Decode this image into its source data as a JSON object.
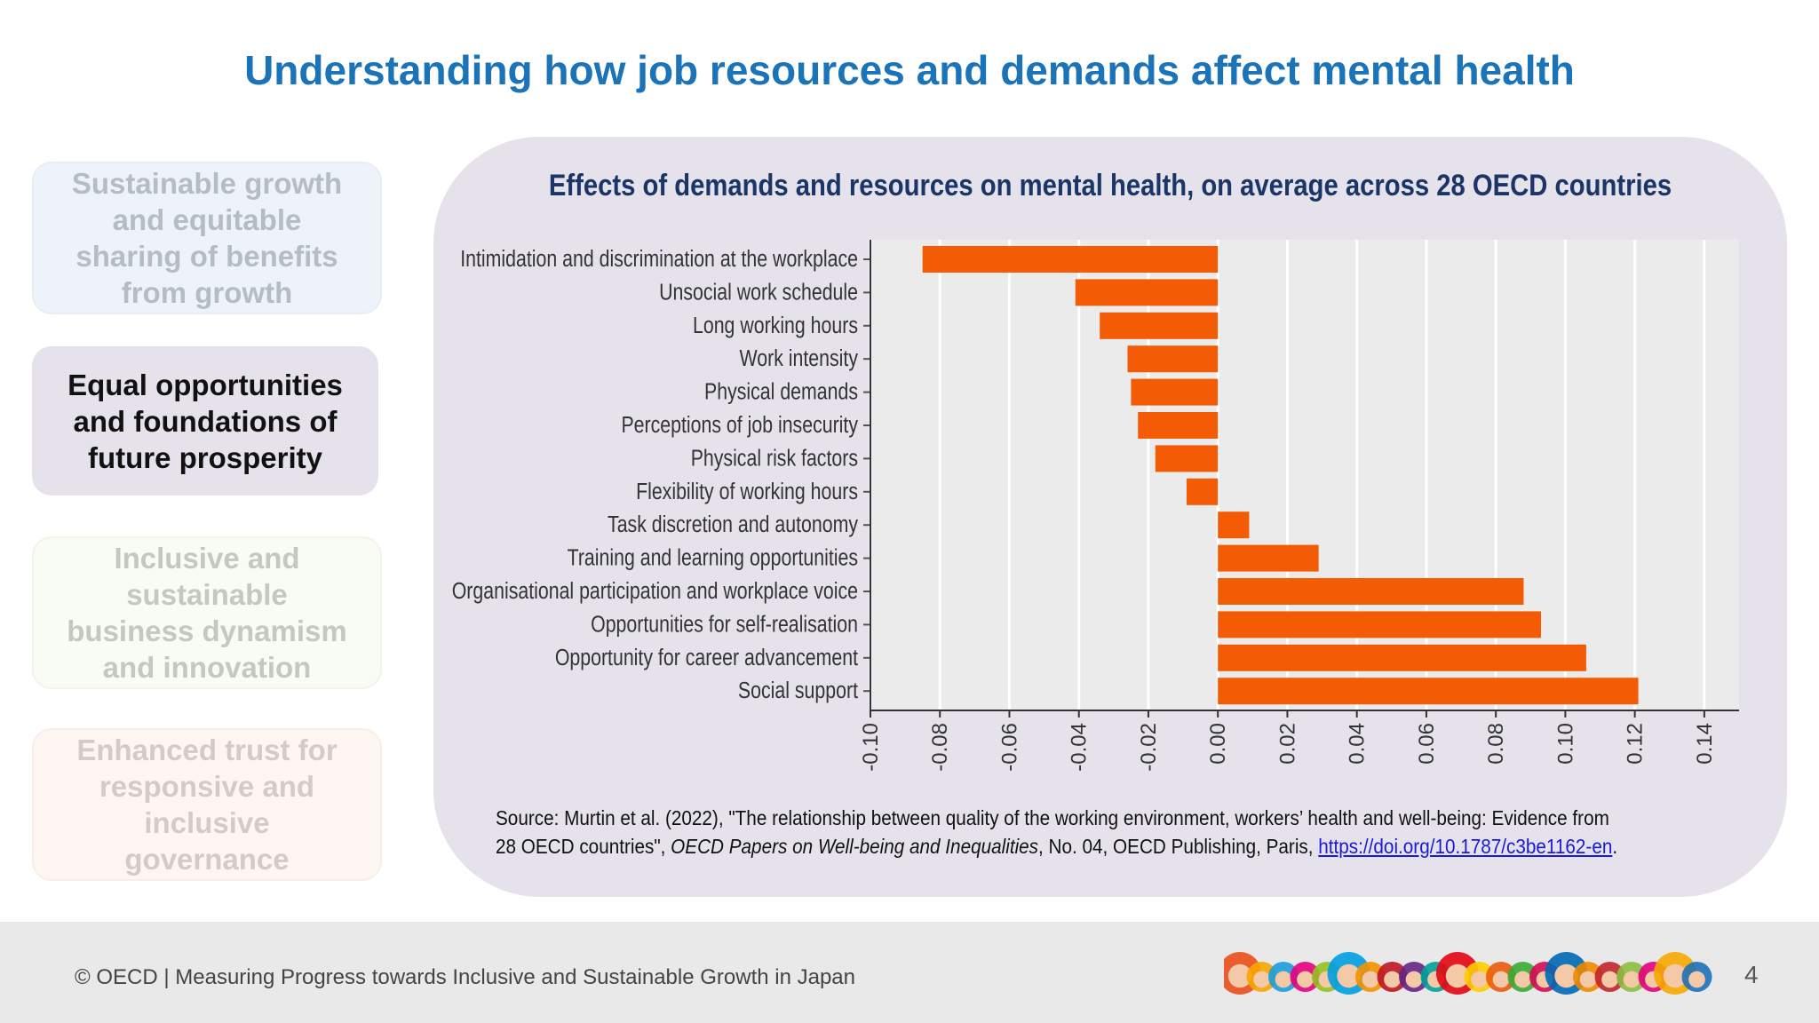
{
  "page": {
    "title": "Understanding how job resources and demands affect mental health",
    "page_number": "4"
  },
  "sidebar": {
    "items": [
      {
        "label": "Sustainable growth and equitable sharing of benefits from growth",
        "state": "dimmed"
      },
      {
        "label": "Equal opportunities and foundations of future prosperity",
        "state": "active"
      },
      {
        "label": "Inclusive and sustainable business dynamism and innovation",
        "state": "dimmed"
      },
      {
        "label": "Enhanced trust for responsive and inclusive governance",
        "state": "dimmed"
      }
    ]
  },
  "chart_data": {
    "type": "bar",
    "orientation": "horizontal",
    "title": "Effects of demands and resources on mental health, on average across 28 OECD countries",
    "categories": [
      "Intimidation and discrimination at the workplace",
      "Unsocial work schedule",
      "Long working hours",
      "Work intensity",
      "Physical demands",
      "Perceptions of job insecurity",
      "Physical risk factors",
      "Flexibility of working hours",
      "Task discretion and autonomy",
      "Training and learning opportunities",
      "Organisational participation and workplace voice",
      "Opportunities for self-realisation",
      "Opportunity for career advancement",
      "Social support"
    ],
    "values": [
      -0.085,
      -0.041,
      -0.034,
      -0.026,
      -0.025,
      -0.023,
      -0.018,
      -0.009,
      0.009,
      0.029,
      0.088,
      0.093,
      0.106,
      0.121
    ],
    "xlim": [
      -0.1,
      0.15
    ],
    "xticks": [
      "-0.10",
      "-0.08",
      "-0.06",
      "-0.04",
      "-0.02",
      "0.00",
      "0.02",
      "0.04",
      "0.06",
      "0.08",
      "0.10",
      "0.12",
      "0.14"
    ],
    "tick_values": [
      -0.1,
      -0.08,
      -0.06,
      -0.04,
      -0.02,
      0.0,
      0.02,
      0.04,
      0.06,
      0.08,
      0.1,
      0.12,
      0.14
    ],
    "bar_color": "#f35b04",
    "grid": true,
    "xlabel": "",
    "ylabel": ""
  },
  "source": {
    "prefix": "Source: Murtin et al. (2022), \"The relationship between quality of the working environment, workers’ health and well-being: Evidence from 28 OECD countries\", ",
    "journal": "OECD Papers on Well-being and Inequalities",
    "suffix": ", No. 04, OECD Publishing, Paris, ",
    "link_text": "https://doi.org/10.1787/c3be1162-en",
    "end": "."
  },
  "footer": {
    "text": "© OECD | Measuring Progress towards Inclusive and Sustainable Growth in Japan"
  },
  "colors": {
    "title_blue": "#1b73b8",
    "chart_title_navy": "#1a3566",
    "panel_bg": "#e5e2ec",
    "bar_orange": "#f35b04"
  }
}
